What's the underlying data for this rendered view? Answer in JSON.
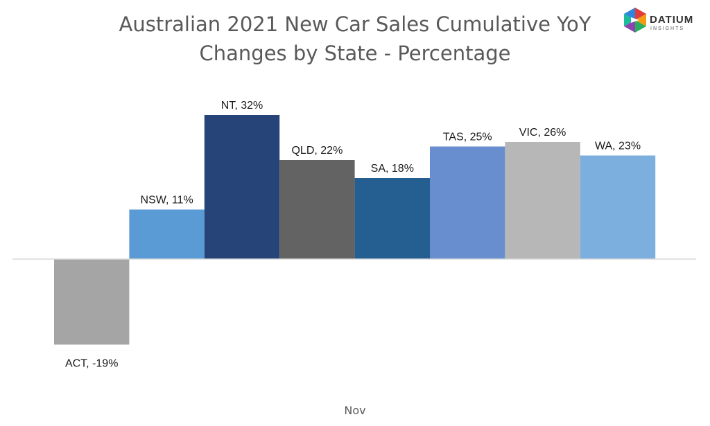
{
  "chart_data": {
    "type": "bar",
    "title": [
      "Australian 2021 New Car Sales Cumulative YoY",
      "Changes by State - Percentage"
    ],
    "categories": [
      "Nov"
    ],
    "series": [
      {
        "name": "ACT",
        "values": [
          -19
        ],
        "color": "#a5a5a5",
        "label": "ACT, -19%"
      },
      {
        "name": "NSW",
        "values": [
          11
        ],
        "color": "#5b9bd5",
        "label": "NSW, 11%"
      },
      {
        "name": "NT",
        "values": [
          32
        ],
        "color": "#264478",
        "label": "NT, 32%"
      },
      {
        "name": "QLD",
        "values": [
          22
        ],
        "color": "#636363",
        "label": "QLD, 22%"
      },
      {
        "name": "SA",
        "values": [
          18
        ],
        "color": "#255e91",
        "label": "SA, 18%"
      },
      {
        "name": "TAS",
        "values": [
          25
        ],
        "color": "#698ed0",
        "label": "TAS, 25%"
      },
      {
        "name": "VIC",
        "values": [
          26
        ],
        "color": "#b7b7b7",
        "label": "VIC, 26%"
      },
      {
        "name": "WA",
        "values": [
          23
        ],
        "color": "#7cafdd",
        "label": "WA, 23%"
      }
    ],
    "ylim": [
      -19,
      32
    ],
    "grid": false,
    "legend": "none"
  },
  "logo": {
    "word": "DATIUM",
    "sub": "INSIGHTS"
  }
}
